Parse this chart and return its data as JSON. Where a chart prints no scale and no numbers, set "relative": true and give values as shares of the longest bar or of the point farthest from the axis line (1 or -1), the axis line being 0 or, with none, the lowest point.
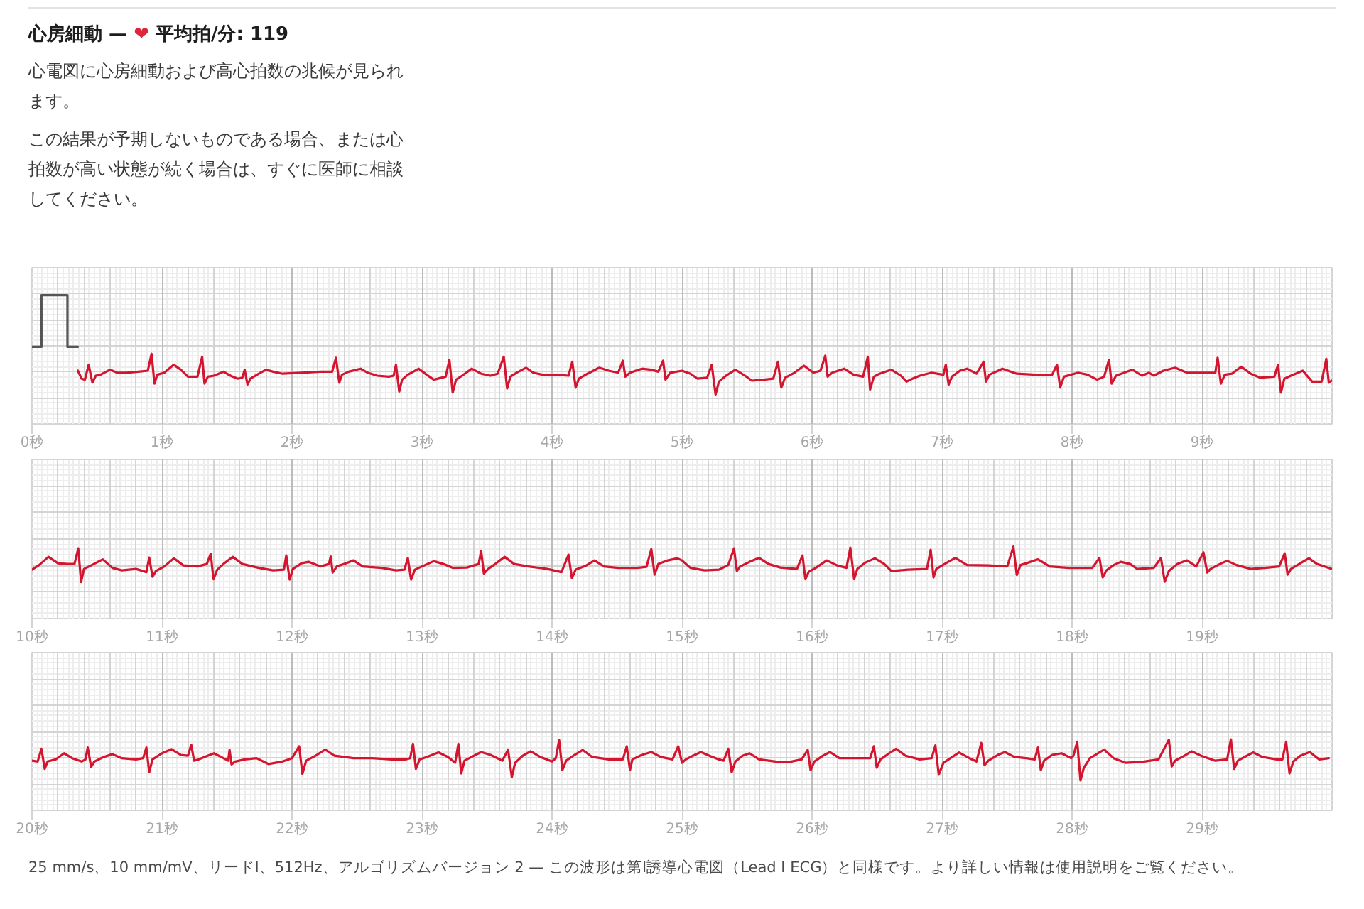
{
  "chart_data": [
    {
      "type": "line",
      "title": "心房細動 — ❤ 平均拍/分: 119",
      "annotations": [
        "心電図に心房細動および高心拍数の兆候が見られます。",
        "この結果が予期しないものである場合、または心拍数が高い状態が続く場合は、すぐに医師に相談してください。"
      ],
      "relative": true,
      "grid": true,
      "xlim": [
        0,
        10
      ],
      "xticks": [
        {
          "value": 0,
          "label": "0秒"
        },
        {
          "value": 1,
          "label": "1秒"
        },
        {
          "value": 2,
          "label": "2秒"
        },
        {
          "value": 3,
          "label": "3秒"
        },
        {
          "value": 4,
          "label": "4秒"
        },
        {
          "value": 5,
          "label": "5秒"
        },
        {
          "value": 6,
          "label": "6秒"
        },
        {
          "value": 7,
          "label": "7秒"
        },
        {
          "value": 8,
          "label": "8秒"
        },
        {
          "value": 9,
          "label": "9秒"
        }
      ],
      "series": [
        {
          "color": "#555555",
          "x": [
            0,
            0.073,
            0.073,
            0.273,
            0.273,
            0.353
          ],
          "values": [
            0.48,
            0.48,
            1,
            1,
            0.48,
            0.48
          ]
        },
        {
          "color": "#d4152f",
          "x": [
            0.353,
            0.382,
            0.407,
            0.436,
            0.465,
            0.491,
            0.527,
            0.6,
            0.655,
            0.727,
            0.818,
            0.891,
            0.92,
            0.942,
            0.964,
            1.018,
            1.091,
            1.145,
            1.2,
            1.273,
            1.309,
            1.327,
            1.353,
            1.4,
            1.473,
            1.527,
            1.582,
            1.618,
            1.636,
            1.658,
            1.68,
            1.745,
            1.8,
            1.855,
            1.927,
            2.073,
            2.218,
            2.309,
            2.338,
            2.364,
            2.385,
            2.436,
            2.527,
            2.582,
            2.655,
            2.745,
            2.782,
            2.8,
            2.825,
            2.847,
            2.891,
            2.975,
            3.036,
            3.091,
            3.182,
            3.211,
            3.236,
            3.262,
            3.309,
            3.382,
            3.455,
            3.527,
            3.582,
            3.629,
            3.655,
            3.68,
            3.727,
            3.8,
            3.855,
            3.927,
            4.036,
            4.127,
            4.156,
            4.182,
            4.207,
            4.273,
            4.364,
            4.436,
            4.509,
            4.545,
            4.564,
            4.6,
            4.691,
            4.764,
            4.818,
            4.855,
            4.873,
            4.909,
            5.0,
            5.065,
            5.12,
            5.193,
            5.229,
            5.258,
            5.284,
            5.338,
            5.411,
            5.484,
            5.538,
            5.629,
            5.702,
            5.738,
            5.764,
            5.793,
            5.865,
            5.938,
            6.011,
            6.065,
            6.102,
            6.12,
            6.156,
            6.247,
            6.32,
            6.393,
            6.429,
            6.447,
            6.476,
            6.52,
            6.611,
            6.684,
            6.727,
            6.756,
            6.829,
            6.92,
            7.011,
            7.029,
            7.051,
            7.076,
            7.138,
            7.193,
            7.265,
            7.32,
            7.338,
            7.364,
            7.465,
            7.575,
            7.72,
            7.847,
            7.884,
            7.909,
            7.938,
            8.047,
            8.12,
            8.193,
            8.247,
            8.284,
            8.305,
            8.338,
            8.465,
            8.538,
            8.593,
            8.629,
            8.702,
            8.793,
            8.884,
            9.029,
            9.102,
            9.12,
            9.145,
            9.175,
            9.229,
            9.302,
            9.375,
            9.447,
            9.556,
            9.585,
            9.607,
            9.633,
            9.684,
            9.775,
            9.847,
            9.92,
            9.956,
            9.975,
            9.996
          ],
          "values": [
            0.24,
            0.16,
            0.15,
            0.3,
            0.12,
            0.19,
            0.2,
            0.25,
            0.22,
            0.22,
            0.23,
            0.24,
            0.41,
            0.11,
            0.2,
            0.22,
            0.3,
            0.25,
            0.18,
            0.18,
            0.38,
            0.11,
            0.18,
            0.19,
            0.23,
            0.19,
            0.16,
            0.17,
            0.25,
            0.1,
            0.16,
            0.21,
            0.25,
            0.23,
            0.21,
            0.22,
            0.23,
            0.23,
            0.37,
            0.12,
            0.2,
            0.23,
            0.26,
            0.22,
            0.19,
            0.18,
            0.19,
            0.3,
            0.03,
            0.15,
            0.2,
            0.26,
            0.2,
            0.15,
            0.18,
            0.35,
            0.02,
            0.15,
            0.19,
            0.26,
            0.21,
            0.19,
            0.21,
            0.38,
            0.06,
            0.18,
            0.22,
            0.27,
            0.22,
            0.2,
            0.2,
            0.19,
            0.33,
            0.07,
            0.16,
            0.21,
            0.27,
            0.24,
            0.22,
            0.34,
            0.18,
            0.22,
            0.26,
            0.25,
            0.23,
            0.34,
            0.15,
            0.22,
            0.24,
            0.21,
            0.16,
            0.17,
            0.3,
            0.0,
            0.13,
            0.19,
            0.25,
            0.19,
            0.14,
            0.15,
            0.16,
            0.33,
            0.07,
            0.17,
            0.22,
            0.29,
            0.22,
            0.24,
            0.39,
            0.18,
            0.22,
            0.26,
            0.2,
            0.18,
            0.38,
            0.05,
            0.18,
            0.21,
            0.25,
            0.19,
            0.13,
            0.15,
            0.19,
            0.22,
            0.2,
            0.3,
            0.1,
            0.18,
            0.24,
            0.26,
            0.21,
            0.33,
            0.13,
            0.2,
            0.26,
            0.21,
            0.2,
            0.2,
            0.3,
            0.07,
            0.18,
            0.22,
            0.2,
            0.15,
            0.18,
            0.35,
            0.11,
            0.19,
            0.25,
            0.19,
            0.22,
            0.19,
            0.24,
            0.27,
            0.22,
            0.22,
            0.22,
            0.37,
            0.11,
            0.2,
            0.21,
            0.28,
            0.21,
            0.17,
            0.18,
            0.3,
            0.02,
            0.16,
            0.19,
            0.24,
            0.13,
            0.13,
            0.36,
            0.12,
            0.14
          ]
        }
      ]
    },
    {
      "type": "line",
      "relative": true,
      "grid": true,
      "xlim": [
        10,
        20
      ],
      "xticks": [
        {
          "value": 10,
          "label": "10秒"
        },
        {
          "value": 11,
          "label": "11秒"
        },
        {
          "value": 12,
          "label": "12秒"
        },
        {
          "value": 13,
          "label": "13秒"
        },
        {
          "value": 14,
          "label": "14秒"
        },
        {
          "value": 15,
          "label": "15秒"
        },
        {
          "value": 16,
          "label": "16秒"
        },
        {
          "value": 17,
          "label": "17秒"
        },
        {
          "value": 18,
          "label": "18秒"
        },
        {
          "value": 19,
          "label": "19秒"
        }
      ],
      "series": [
        {
          "color": "#d4152f",
          "x": [
            10.0,
            10.055,
            10.127,
            10.2,
            10.273,
            10.327,
            10.356,
            10.378,
            10.4,
            10.455,
            10.545,
            10.618,
            10.691,
            10.8,
            10.88,
            10.902,
            10.927,
            10.953,
            11.018,
            11.091,
            11.164,
            11.273,
            11.345,
            11.375,
            11.396,
            11.425,
            11.473,
            11.545,
            11.618,
            11.745,
            11.855,
            11.938,
            11.956,
            11.982,
            12.007,
            12.073,
            12.127,
            12.218,
            12.284,
            12.298,
            12.313,
            12.345,
            12.418,
            12.473,
            12.545,
            12.691,
            12.8,
            12.865,
            12.891,
            12.916,
            12.945,
            13.0,
            13.091,
            13.164,
            13.236,
            13.345,
            13.436,
            13.455,
            13.476,
            13.509,
            13.564,
            13.636,
            13.709,
            13.818,
            13.964,
            14.073,
            14.127,
            14.153,
            14.182,
            14.255,
            14.327,
            14.4,
            14.509,
            14.655,
            14.727,
            14.764,
            14.789,
            14.818,
            14.891,
            14.964,
            15.0,
            15.065,
            15.175,
            15.284,
            15.356,
            15.4,
            15.422,
            15.447,
            15.52,
            15.593,
            15.665,
            15.756,
            15.884,
            15.927,
            15.949,
            15.975,
            16.029,
            16.113,
            16.193,
            16.265,
            16.295,
            16.324,
            16.349,
            16.411,
            16.484,
            16.556,
            16.611,
            16.738,
            16.884,
            16.913,
            16.935,
            16.956,
            17.029,
            17.102,
            17.193,
            17.356,
            17.502,
            17.549,
            17.575,
            17.604,
            17.665,
            17.738,
            17.829,
            17.975,
            18.156,
            18.211,
            18.236,
            18.265,
            18.32,
            18.375,
            18.447,
            18.502,
            18.629,
            18.684,
            18.713,
            18.745,
            18.811,
            18.884,
            18.956,
            19.011,
            19.04,
            19.065,
            19.138,
            19.193,
            19.265,
            19.375,
            19.484,
            19.593,
            19.636,
            19.658,
            19.684,
            19.756,
            19.822,
            19.884,
            19.996
          ],
          "values": [
            0.35,
            0.48,
            0.71,
            0.53,
            0.51,
            0.51,
            0.95,
            0.0,
            0.37,
            0.47,
            0.64,
            0.4,
            0.33,
            0.37,
            0.28,
            0.69,
            0.15,
            0.31,
            0.44,
            0.67,
            0.47,
            0.44,
            0.51,
            0.8,
            0.08,
            0.35,
            0.51,
            0.71,
            0.51,
            0.4,
            0.33,
            0.35,
            0.75,
            0.07,
            0.37,
            0.53,
            0.57,
            0.44,
            0.51,
            0.72,
            0.27,
            0.44,
            0.53,
            0.61,
            0.44,
            0.4,
            0.33,
            0.35,
            0.68,
            0.07,
            0.35,
            0.44,
            0.59,
            0.51,
            0.4,
            0.41,
            0.51,
            0.88,
            0.24,
            0.37,
            0.51,
            0.71,
            0.51,
            0.44,
            0.37,
            0.28,
            0.77,
            0.11,
            0.35,
            0.45,
            0.61,
            0.44,
            0.4,
            0.4,
            0.43,
            0.93,
            0.21,
            0.51,
            0.61,
            0.67,
            0.61,
            0.4,
            0.33,
            0.35,
            0.48,
            0.95,
            0.31,
            0.44,
            0.57,
            0.68,
            0.51,
            0.41,
            0.37,
            0.75,
            0.08,
            0.29,
            0.4,
            0.61,
            0.47,
            0.4,
            0.97,
            0.08,
            0.37,
            0.55,
            0.67,
            0.51,
            0.31,
            0.35,
            0.37,
            0.91,
            0.13,
            0.37,
            0.53,
            0.68,
            0.48,
            0.47,
            0.44,
            1.0,
            0.2,
            0.48,
            0.55,
            0.64,
            0.44,
            0.4,
            0.4,
            0.68,
            0.13,
            0.33,
            0.48,
            0.57,
            0.51,
            0.37,
            0.4,
            0.68,
            0.01,
            0.31,
            0.51,
            0.61,
            0.44,
            0.84,
            0.27,
            0.37,
            0.51,
            0.6,
            0.48,
            0.37,
            0.4,
            0.44,
            0.81,
            0.21,
            0.37,
            0.53,
            0.67,
            0.51,
            0.37
          ]
        }
      ]
    },
    {
      "type": "line",
      "relative": true,
      "grid": true,
      "xlim": [
        20,
        30
      ],
      "annotations": [
        "25 mm/s、10 mm/mV、リードI、512Hz、アルゴリズムバージョン 2 — この波形は第I誘導心電図（Lead I ECG）と同様です。より詳しい情報は使用説明をご覧ください。"
      ],
      "xticks": [
        {
          "value": 20,
          "label": "20秒"
        },
        {
          "value": 21,
          "label": "21秒"
        },
        {
          "value": 22,
          "label": "22秒"
        },
        {
          "value": 23,
          "label": "23秒"
        },
        {
          "value": 24,
          "label": "24秒"
        },
        {
          "value": 25,
          "label": "25秒"
        },
        {
          "value": 26,
          "label": "26秒"
        },
        {
          "value": 27,
          "label": "27秒"
        },
        {
          "value": 28,
          "label": "28秒"
        },
        {
          "value": 29,
          "label": "29秒"
        }
      ],
      "series": [
        {
          "color": "#d4152f",
          "x": [
            20.0,
            20.044,
            20.073,
            20.098,
            20.12,
            20.182,
            20.247,
            20.309,
            20.382,
            20.411,
            20.429,
            20.455,
            20.48,
            20.545,
            20.618,
            20.691,
            20.8,
            20.855,
            20.88,
            20.902,
            20.927,
            21.0,
            21.073,
            21.145,
            21.2,
            21.225,
            21.247,
            21.28,
            21.327,
            21.4,
            21.473,
            21.509,
            21.52,
            21.535,
            21.564,
            21.636,
            21.727,
            21.818,
            21.927,
            22.0,
            22.055,
            22.08,
            22.109,
            22.182,
            22.255,
            22.327,
            22.473,
            22.618,
            22.764,
            22.873,
            22.909,
            22.931,
            22.953,
            22.982,
            23.036,
            23.127,
            23.2,
            23.255,
            23.28,
            23.302,
            23.327,
            23.382,
            23.455,
            23.527,
            23.618,
            23.662,
            23.691,
            23.716,
            23.775,
            23.836,
            23.909,
            24.0,
            24.029,
            24.055,
            24.08,
            24.109,
            24.164,
            24.236,
            24.309,
            24.436,
            24.545,
            24.575,
            24.6,
            24.618,
            24.691,
            24.764,
            24.836,
            24.927,
            24.971,
            25.0,
            25.029,
            25.084,
            25.145,
            25.211,
            25.284,
            25.32,
            25.356,
            25.382,
            25.411,
            25.465,
            25.52,
            25.593,
            25.72,
            25.829,
            25.92,
            25.967,
            25.989,
            26.018,
            26.084,
            26.138,
            26.211,
            26.375,
            26.447,
            26.476,
            26.498,
            26.527,
            26.593,
            26.647,
            26.72,
            26.829,
            26.92,
            26.949,
            26.975,
            27.011,
            27.065,
            27.131,
            27.211,
            27.265,
            27.302,
            27.327,
            27.356,
            27.429,
            27.484,
            27.556,
            27.647,
            27.713,
            27.738,
            27.76,
            27.785,
            27.847,
            27.92,
            27.993,
            28.011,
            28.04,
            28.065,
            28.091,
            28.138,
            28.247,
            28.32,
            28.411,
            28.538,
            28.665,
            28.745,
            28.767,
            28.793,
            28.865,
            28.92,
            28.993,
            29.102,
            29.193,
            29.222,
            29.247,
            29.276,
            29.32,
            29.393,
            29.465,
            29.575,
            29.618,
            29.647,
            29.673,
            29.702,
            29.756,
            29.829,
            29.902,
            29.975
          ],
          "values": [
            0.48,
            0.46,
            0.77,
            0.28,
            0.46,
            0.51,
            0.66,
            0.54,
            0.46,
            0.51,
            0.8,
            0.33,
            0.46,
            0.56,
            0.64,
            0.54,
            0.51,
            0.54,
            0.8,
            0.2,
            0.51,
            0.66,
            0.76,
            0.62,
            0.6,
            0.87,
            0.48,
            0.51,
            0.57,
            0.66,
            0.54,
            0.48,
            0.74,
            0.39,
            0.46,
            0.51,
            0.54,
            0.4,
            0.46,
            0.54,
            0.83,
            0.16,
            0.48,
            0.6,
            0.75,
            0.6,
            0.54,
            0.54,
            0.51,
            0.51,
            0.54,
            0.89,
            0.28,
            0.51,
            0.57,
            0.68,
            0.57,
            0.43,
            0.89,
            0.17,
            0.48,
            0.57,
            0.69,
            0.62,
            0.48,
            0.75,
            0.08,
            0.43,
            0.6,
            0.71,
            0.57,
            0.46,
            0.54,
            0.98,
            0.25,
            0.48,
            0.6,
            0.74,
            0.57,
            0.51,
            0.51,
            0.83,
            0.25,
            0.51,
            0.62,
            0.69,
            0.57,
            0.51,
            0.83,
            0.43,
            0.51,
            0.6,
            0.69,
            0.6,
            0.51,
            0.48,
            0.77,
            0.2,
            0.46,
            0.6,
            0.66,
            0.51,
            0.46,
            0.45,
            0.51,
            0.74,
            0.25,
            0.46,
            0.6,
            0.69,
            0.54,
            0.54,
            0.54,
            0.83,
            0.31,
            0.51,
            0.66,
            0.77,
            0.6,
            0.51,
            0.54,
            0.85,
            0.14,
            0.43,
            0.54,
            0.68,
            0.54,
            0.46,
            0.91,
            0.37,
            0.48,
            0.62,
            0.69,
            0.57,
            0.54,
            0.51,
            0.8,
            0.25,
            0.48,
            0.62,
            0.66,
            0.54,
            0.6,
            0.94,
            0.0,
            0.31,
            0.54,
            0.75,
            0.54,
            0.43,
            0.45,
            0.51,
            0.99,
            0.34,
            0.48,
            0.6,
            0.71,
            0.6,
            0.48,
            0.51,
            1.0,
            0.28,
            0.48,
            0.56,
            0.68,
            0.57,
            0.51,
            0.51,
            0.94,
            0.17,
            0.46,
            0.6,
            0.69,
            0.51,
            0.54
          ]
        }
      ]
    }
  ]
}
